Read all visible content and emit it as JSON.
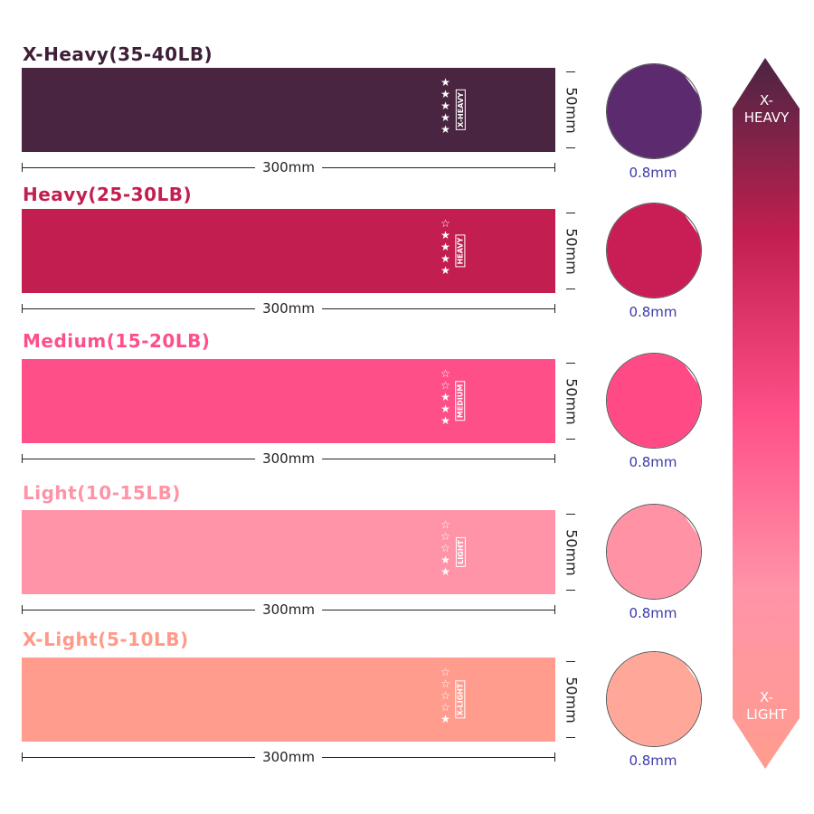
{
  "bands": [
    {
      "title": "X-Heavy(35-40LB)",
      "title_color": "#3d1f38",
      "color": "#4a2542",
      "stars_filled": 5,
      "stars_total": 5,
      "tag": "X-HEAVY",
      "length": "300mm",
      "width": "50mm",
      "thickness": "0.8mm",
      "circle_color": "#5c2a6e"
    },
    {
      "title": "Heavy(25-30LB)",
      "title_color": "#c21f50",
      "color": "#c21f50",
      "stars_filled": 4,
      "stars_total": 5,
      "tag": "HEAVY",
      "length": "300mm",
      "width": "50mm",
      "thickness": "0.8mm",
      "circle_color": "#c81d55"
    },
    {
      "title": "Medium(15-20LB)",
      "title_color": "#ff4f88",
      "color": "#ff4f88",
      "stars_filled": 3,
      "stars_total": 5,
      "tag": "MEDIUM",
      "length": "300mm",
      "width": "50mm",
      "thickness": "0.8mm",
      "circle_color": "#ff4a86"
    },
    {
      "title": "Light(10-15LB)",
      "title_color": "#ff93a5",
      "color": "#ff94a8",
      "stars_filled": 2,
      "stars_total": 5,
      "tag": "LIGHT",
      "length": "300mm",
      "width": "50mm",
      "thickness": "0.8mm",
      "circle_color": "#ff92a4"
    },
    {
      "title": "X-Light(5-10LB)",
      "title_color": "#ff9a88",
      "color": "#ff9c8e",
      "stars_filled": 1,
      "stars_total": 5,
      "tag": "X-LIGHT",
      "length": "300mm",
      "width": "50mm",
      "thickness": "0.8mm",
      "circle_color": "#ffa899"
    }
  ],
  "scale_arrow": {
    "top_label": "X-\nHEAVY",
    "bottom_label": "X-\nLIGHT",
    "top_color": "#4a2542",
    "mid_color": "#ff4f88",
    "bottom_color": "#ff9c8e"
  }
}
